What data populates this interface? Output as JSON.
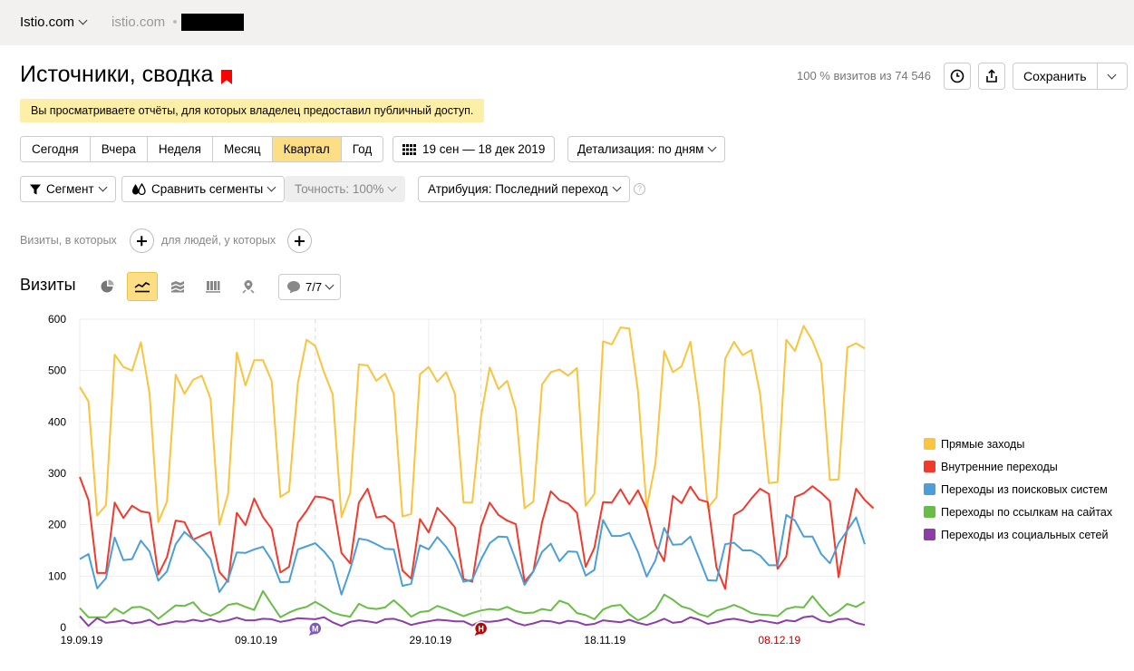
{
  "topbar": {
    "site": "Istio.com",
    "site_sub": "istio.com",
    "site_dot": "•"
  },
  "header": {
    "title": "Источники, сводка",
    "visits_total": "100 % визитов из 74 546",
    "save_label": "Сохранить"
  },
  "notice": "Вы просматриваете отчёты, для которых владелец предоставил публичный доступ.",
  "periods": [
    "Сегодня",
    "Вчера",
    "Неделя",
    "Месяц",
    "Квартал",
    "Год"
  ],
  "active_period": "Квартал",
  "date_range": "19 сен — 18 дек 2019",
  "detail": "Детализация: по дням",
  "segment": "Сегмент",
  "compare": "Сравнить сегменты",
  "accuracy": "Точность: 100%",
  "attribution": "Атрибуция: Последний переход",
  "filters": {
    "visits_label": "Визиты, в которых",
    "people_label": "для людей, у которых"
  },
  "section_title": "Визиты",
  "series_count": "7/7",
  "colors": {
    "accent": "#fdde85",
    "bookmark": "#ff0000",
    "holiday": "#c40000"
  },
  "chart_data": {
    "type": "line",
    "ylim": [
      0,
      600
    ],
    "yticks": [
      0,
      100,
      200,
      300,
      400,
      500,
      600
    ],
    "xticks": [
      "19.09.19",
      "09.10.19",
      "29.10.19",
      "18.11.19",
      "08.12.19"
    ],
    "xtick_index": [
      0,
      20,
      40,
      60,
      80
    ],
    "holiday_tick": "08.12.19",
    "markers": [
      {
        "label": "М",
        "index": 27,
        "color": "#7d57c2"
      },
      {
        "label": "Н",
        "index": 46,
        "color": "#c40000"
      }
    ],
    "series": [
      {
        "name": "Прямые заходы",
        "color": "#f9c43e",
        "values": [
          468,
          440,
          218,
          238,
          531,
          507,
          500,
          555,
          455,
          205,
          245,
          492,
          455,
          482,
          490,
          445,
          200,
          260,
          535,
          471,
          520,
          520,
          480,
          254,
          265,
          476,
          560,
          548,
          497,
          454,
          215,
          262,
          512,
          510,
          480,
          494,
          455,
          216,
          221,
          493,
          507,
          478,
          497,
          455,
          243,
          243,
          410,
          506,
          464,
          480,
          423,
          232,
          245,
          473,
          497,
          502,
          490,
          505,
          237,
          260,
          557,
          551,
          584,
          582,
          460,
          232,
          320,
          538,
          497,
          508,
          556,
          434,
          233,
          253,
          523,
          556,
          530,
          540,
          455,
          281,
          283,
          560,
          538,
          587,
          558,
          515,
          287,
          288,
          545,
          553,
          543
        ]
      },
      {
        "name": "Внутренние переходы",
        "color": "#f03a2e",
        "values": [
          293,
          248,
          106,
          106,
          243,
          213,
          237,
          226,
          223,
          103,
          137,
          208,
          205,
          171,
          179,
          186,
          108,
          89,
          223,
          199,
          251,
          215,
          192,
          107,
          118,
          204,
          227,
          255,
          253,
          247,
          145,
          125,
          243,
          270,
          214,
          217,
          203,
          111,
          95,
          211,
          185,
          233,
          215,
          195,
          94,
          89,
          197,
          243,
          219,
          208,
          201,
          89,
          109,
          205,
          265,
          248,
          241,
          223,
          118,
          155,
          244,
          243,
          269,
          240,
          267,
          230,
          160,
          129,
          256,
          242,
          274,
          249,
          244,
          117,
          75,
          219,
          229,
          251,
          270,
          260,
          114,
          138,
          254,
          261,
          275,
          262,
          246,
          98,
          193,
          270,
          248,
          232
        ]
      },
      {
        "name": "Переходы из поисковых систем",
        "color": "#4b9fd8",
        "values": [
          133,
          143,
          76,
          96,
          175,
          131,
          133,
          169,
          148,
          91,
          109,
          162,
          186,
          171,
          154,
          133,
          69,
          93,
          146,
          145,
          152,
          157,
          131,
          88,
          89,
          152,
          158,
          164,
          148,
          127,
          64,
          113,
          173,
          170,
          162,
          153,
          152,
          81,
          85,
          160,
          152,
          176,
          157,
          130,
          89,
          93,
          132,
          164,
          177,
          176,
          131,
          83,
          109,
          147,
          163,
          129,
          148,
          147,
          101,
          112,
          209,
          178,
          178,
          184,
          147,
          99,
          131,
          194,
          161,
          162,
          177,
          135,
          92,
          91,
          162,
          165,
          150,
          150,
          140,
          121,
          121,
          219,
          208,
          177,
          177,
          143,
          125,
          164,
          189,
          214,
          162
        ]
      },
      {
        "name": "Переходы по ссылкам на сайтах",
        "color": "#69bd46",
        "values": [
          38,
          20,
          20,
          20,
          37,
          27,
          39,
          40,
          33,
          17,
          30,
          43,
          42,
          49,
          30,
          23,
          30,
          44,
          47,
          40,
          34,
          71,
          45,
          20,
          29,
          36,
          40,
          50,
          40,
          29,
          24,
          21,
          46,
          38,
          36,
          39,
          53,
          38,
          21,
          30,
          32,
          42,
          36,
          29,
          22,
          28,
          33,
          36,
          34,
          40,
          32,
          28,
          29,
          36,
          33,
          52,
          46,
          28,
          24,
          16,
          35,
          42,
          44,
          26,
          14,
          22,
          35,
          64,
          54,
          41,
          36,
          26,
          21,
          33,
          37,
          44,
          37,
          28,
          25,
          24,
          22,
          36,
          40,
          39,
          61,
          40,
          22,
          32,
          46,
          40,
          50
        ]
      },
      {
        "name": "Переходы из социальных сетей",
        "color": "#8c3da6",
        "values": [
          22,
          3,
          18,
          9,
          11,
          14,
          8,
          10,
          15,
          5,
          8,
          12,
          11,
          15,
          12,
          16,
          11,
          14,
          19,
          14,
          14,
          17,
          16,
          11,
          14,
          18,
          17,
          16,
          20,
          10,
          3,
          11,
          14,
          12,
          9,
          16,
          17,
          12,
          5,
          9,
          12,
          15,
          14,
          12,
          12,
          4,
          12,
          11,
          13,
          17,
          9,
          4,
          8,
          13,
          12,
          8,
          13,
          11,
          5,
          7,
          14,
          12,
          10,
          15,
          9,
          5,
          10,
          17,
          9,
          11,
          20,
          15,
          7,
          10,
          15,
          17,
          14,
          10,
          14,
          11,
          8,
          14,
          12,
          20,
          22,
          13,
          10,
          16,
          17,
          9,
          5
        ]
      }
    ]
  }
}
